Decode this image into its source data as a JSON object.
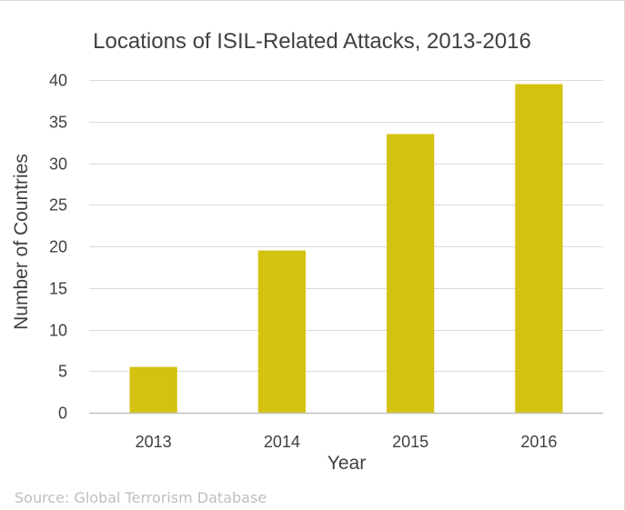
{
  "chart_data": {
    "type": "bar",
    "title": "Locations of ISIL-Related Attacks, 2013-2016",
    "xlabel": "Year",
    "ylabel": "Number of Countries",
    "categories": [
      "2013",
      "2014",
      "2015",
      "2016"
    ],
    "values": [
      5.5,
      19.5,
      33.5,
      39.5
    ],
    "ylim": [
      0,
      40
    ],
    "yticks": [
      0,
      5,
      10,
      15,
      20,
      25,
      30,
      35,
      40
    ],
    "grid": true,
    "legend": "none",
    "bar_color": "#d4c210"
  },
  "source": "Source: Global Terrorism Database"
}
